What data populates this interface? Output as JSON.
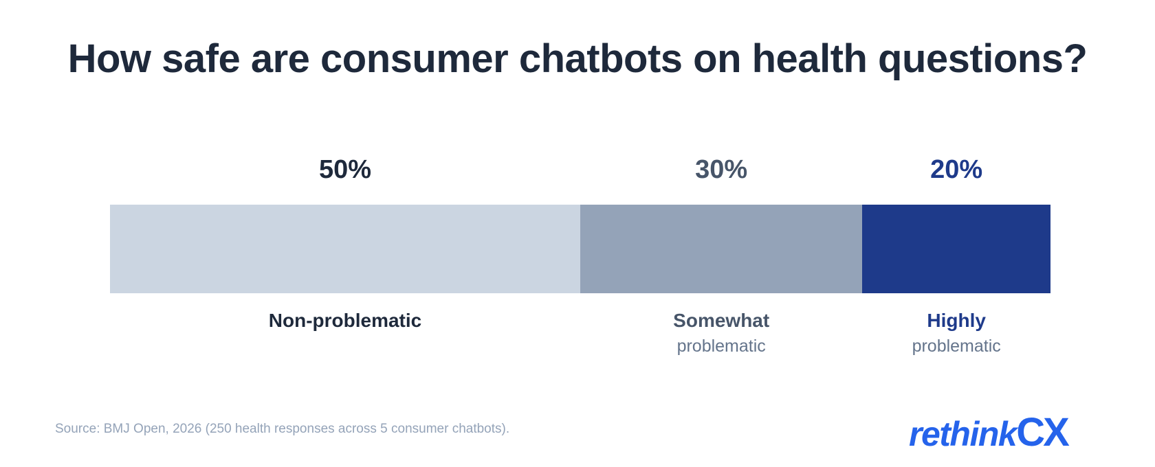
{
  "title": "How safe are consumer chatbots on health questions?",
  "chart_data": {
    "type": "bar",
    "orientation": "horizontal-stacked",
    "categories": [
      "Non-problematic",
      "Somewhat problematic",
      "Highly problematic"
    ],
    "values": [
      50,
      30,
      20
    ],
    "unit": "%",
    "value_labels": [
      "50%",
      "30%",
      "20%"
    ],
    "segments": [
      {
        "label_main": "Non-problematic",
        "label_sub": "",
        "value": 50,
        "value_label": "50%",
        "color": "#cbd5e1",
        "text_color": "#1e293b"
      },
      {
        "label_main": "Somewhat",
        "label_sub": "problematic",
        "value": 30,
        "value_label": "30%",
        "color": "#94a3b8",
        "text_color": "#475569"
      },
      {
        "label_main": "Highly",
        "label_sub": "problematic",
        "value": 20,
        "value_label": "20%",
        "color": "#1e3a8a",
        "text_color": "#1e3a8a"
      }
    ],
    "title": "How safe are consumer chatbots on health questions?",
    "grid": false,
    "legend": "none"
  },
  "footer": {
    "source": "Source: BMJ Open, 2026 (250 health responses across 5 consumer chatbots)."
  },
  "logo": {
    "text_main": "rethink",
    "text_accent": "CX",
    "color": "#2563eb"
  }
}
